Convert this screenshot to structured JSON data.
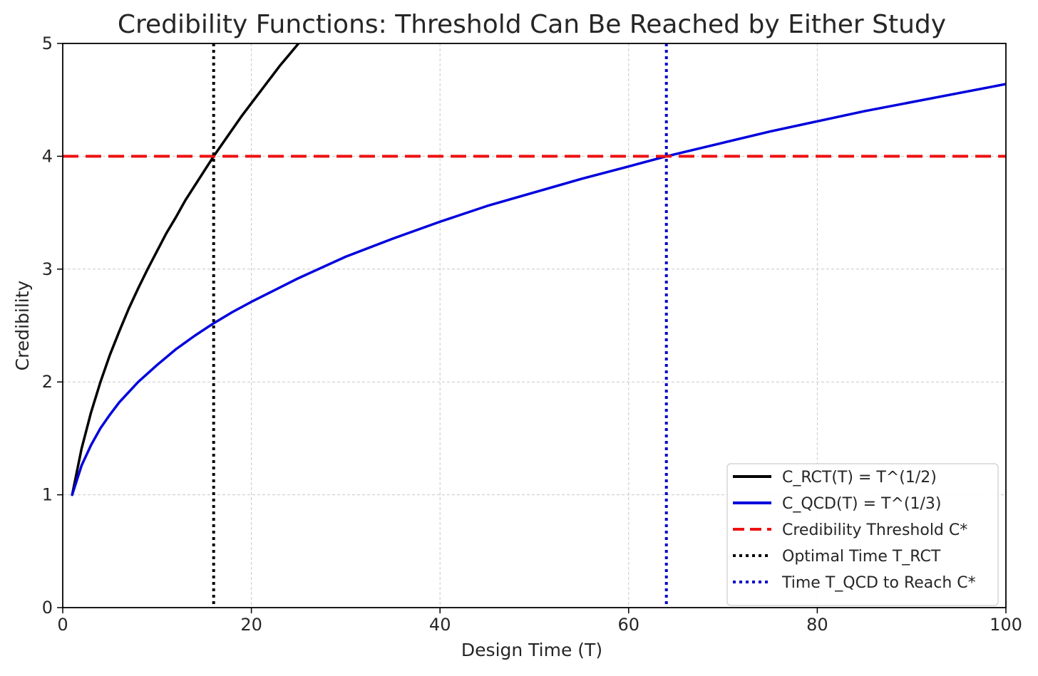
{
  "chart_data": {
    "type": "line",
    "title": "Credibility Functions: Threshold Can Be Reached by Either Study",
    "xlabel": "Design Time (T)",
    "ylabel": "Credibility",
    "xlim": [
      0,
      100
    ],
    "ylim": [
      0,
      5
    ],
    "x_ticks": [
      "0",
      "20",
      "40",
      "60",
      "80",
      "100"
    ],
    "y_ticks": [
      "0",
      "1",
      "2",
      "3",
      "4",
      "5"
    ],
    "grid": true,
    "legend_position": "lower right",
    "series": [
      {
        "name": "C_RCT(T) = T^(1/2)",
        "color": "#000000",
        "style": "solid",
        "x": [
          1,
          2,
          3,
          4,
          5,
          6,
          7,
          8,
          9,
          10,
          11,
          12,
          13,
          14,
          15,
          16,
          17,
          18,
          19,
          20,
          21,
          22,
          23,
          24,
          25,
          26
        ],
        "y": [
          1.0,
          1.41,
          1.73,
          2.0,
          2.24,
          2.45,
          2.65,
          2.83,
          3.0,
          3.16,
          3.32,
          3.46,
          3.61,
          3.74,
          3.87,
          4.0,
          4.12,
          4.24,
          4.36,
          4.47,
          4.58,
          4.69,
          4.8,
          4.9,
          5.0,
          5.1
        ]
      },
      {
        "name": "C_QCD(T) = T^(1/3)",
        "color": "#0000dd",
        "style": "solid",
        "x": [
          1,
          2,
          3,
          4,
          5,
          6,
          8,
          10,
          12,
          14,
          16,
          18,
          20,
          25,
          30,
          35,
          40,
          45,
          50,
          55,
          60,
          64,
          70,
          75,
          80,
          85,
          90,
          95,
          100
        ],
        "y": [
          1.0,
          1.26,
          1.44,
          1.59,
          1.71,
          1.82,
          2.0,
          2.15,
          2.29,
          2.41,
          2.52,
          2.62,
          2.71,
          2.92,
          3.11,
          3.27,
          3.42,
          3.56,
          3.68,
          3.8,
          3.91,
          4.0,
          4.12,
          4.22,
          4.31,
          4.4,
          4.48,
          4.56,
          4.64
        ]
      },
      {
        "name": "Credibility Threshold C*",
        "color": "#ee1111",
        "style": "dashed",
        "orientation": "horizontal",
        "y": 4
      },
      {
        "name": "Optimal Time T_RCT",
        "color": "#000000",
        "style": "dotted",
        "orientation": "vertical",
        "x": 16
      },
      {
        "name": "Time T_QCD to Reach C*",
        "color": "#0000cc",
        "style": "dotted",
        "orientation": "vertical",
        "x": 64
      }
    ]
  }
}
